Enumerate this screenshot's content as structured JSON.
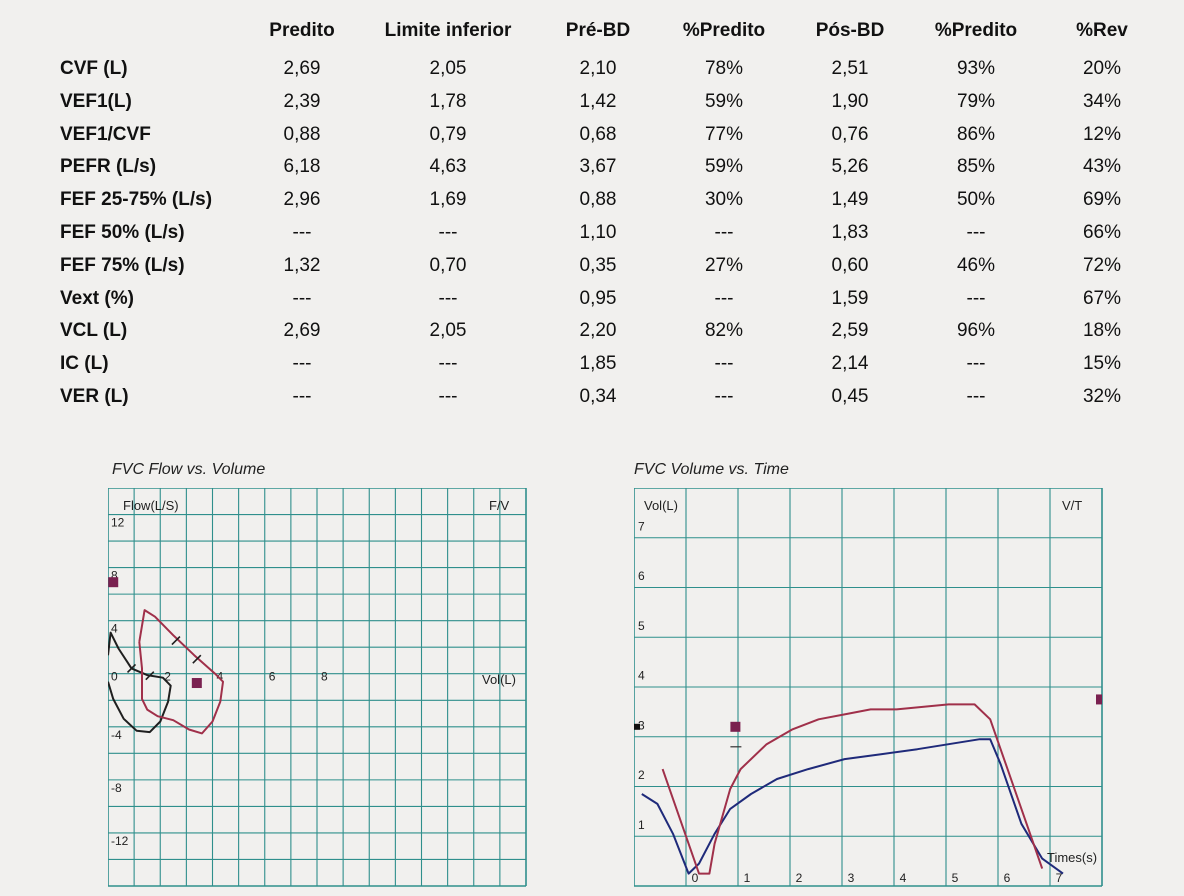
{
  "table": {
    "headers": [
      "Predito",
      "Limite inferior",
      "Pré-BD",
      "%Predito",
      "Pós-BD",
      "%Predito",
      "%Rev"
    ],
    "rows": [
      {
        "label": "CVF (L)",
        "values": [
          "2,69",
          "2,05",
          "2,10",
          "78%",
          "2,51",
          "93%",
          "20%"
        ]
      },
      {
        "label": "VEF1(L)",
        "values": [
          "2,39",
          "1,78",
          "1,42",
          "59%",
          "1,90",
          "79%",
          "34%"
        ]
      },
      {
        "label": "VEF1/CVF",
        "values": [
          "0,88",
          "0,79",
          "0,68",
          "77%",
          "0,76",
          "86%",
          "12%"
        ]
      },
      {
        "label": "PEFR (L/s)",
        "values": [
          "6,18",
          "4,63",
          "3,67",
          "59%",
          "5,26",
          "85%",
          "43%"
        ]
      },
      {
        "label": "FEF 25-75% (L/s)",
        "values": [
          "2,96",
          "1,69",
          "0,88",
          "30%",
          "1,49",
          "50%",
          "69%"
        ]
      },
      {
        "label": "FEF 50% (L/s)",
        "values": [
          "---",
          "---",
          "1,10",
          "---",
          "1,83",
          "---",
          "66%"
        ]
      },
      {
        "label": "FEF 75% (L/s)",
        "values": [
          "1,32",
          "0,70",
          "0,35",
          "27%",
          "0,60",
          "46%",
          "72%"
        ]
      },
      {
        "label": "Vext (%)",
        "values": [
          "---",
          "---",
          "0,95",
          "---",
          "1,59",
          "---",
          "67%"
        ]
      },
      {
        "label": "VCL (L)",
        "values": [
          "2,69",
          "2,05",
          "2,20",
          "82%",
          "2,59",
          "96%",
          "18%"
        ]
      },
      {
        "label": "IC (L)",
        "values": [
          "---",
          "---",
          "1,85",
          "---",
          "2,14",
          "---",
          "15%"
        ]
      },
      {
        "label": "VER (L)",
        "values": [
          "---",
          "---",
          "0,34",
          "---",
          "0,45",
          "---",
          "32%"
        ]
      }
    ]
  },
  "charts": {
    "flow_volume": {
      "title": "FVC Flow  vs. Volume",
      "ylabel": "Flow(L/S)",
      "corner": "F/V",
      "xlabel": "Vol(L)",
      "y_ticks": [
        "12",
        "8",
        "4",
        "-4",
        "-8",
        "-12"
      ],
      "x_ticks": [
        "0",
        "2",
        "4",
        "6",
        "8"
      ]
    },
    "volume_time": {
      "title": "FVC Volume  vs. Time",
      "ylabel": "Vol(L)",
      "corner": "V/T",
      "xlabel": "Times(s)",
      "y_ticks": [
        "7",
        "6",
        "5",
        "4",
        "3",
        "2",
        "1"
      ],
      "x_ticks": [
        "0",
        "1",
        "2",
        "3",
        "4",
        "5",
        "6",
        "7"
      ]
    }
  },
  "colors": {
    "grid": "#2f8f8c",
    "pre_curve": "#1f1f1f",
    "post_curve": "#a0304a",
    "vt_pre_curve": "#1f2a7a",
    "marker": "#7a2150"
  },
  "chart_data": [
    {
      "type": "line",
      "title": "FVC Flow  vs. Volume",
      "xlabel": "Vol(L)",
      "ylabel": "Flow(L/S)",
      "xlim": [
        0,
        15
      ],
      "ylim": [
        -15,
        15
      ],
      "grid": true,
      "series": [
        {
          "x": [
            0.0,
            0.1,
            0.4,
            0.9,
            1.5,
            2.1,
            2.4,
            2.3,
            2.0,
            1.6,
            1.1,
            0.6,
            0.2,
            0.0
          ],
          "y": [
            2.0,
            3.7,
            2.5,
            1.0,
            0.5,
            0.3,
            -0.3,
            -1.5,
            -3.0,
            -3.8,
            -3.7,
            -2.8,
            -1.3,
            0.0
          ]
        },
        {
          "x": [
            1.2,
            1.4,
            1.8,
            2.5,
            3.3,
            4.1,
            4.4,
            4.3,
            4.0,
            3.6,
            3.1,
            2.5,
            1.9,
            1.5,
            1.3,
            1.3,
            1.2
          ],
          "y": [
            3.0,
            5.4,
            4.9,
            3.5,
            2.0,
            0.6,
            0.0,
            -1.5,
            -3.0,
            -3.9,
            -3.6,
            -2.9,
            -2.6,
            -2.1,
            -1.3,
            1.0,
            3.0
          ]
        },
        {
          "x": [
            0.2,
            3.4
          ],
          "y": [
            7.5,
            -0.1
          ]
        }
      ]
    },
    {
      "type": "line",
      "title": "FVC Volume  vs. Time",
      "xlabel": "Times(s)",
      "ylabel": "Vol(L)",
      "xlim": [
        -1,
        7.5
      ],
      "ylim": [
        -0.2,
        7.5
      ],
      "grid": true,
      "series": [
        {
          "x": [
            -0.9,
            -0.6,
            -0.3,
            0.0,
            0.2,
            0.5,
            0.8,
            1.2,
            1.7,
            2.3,
            3.0,
            3.7,
            4.4,
            5.0,
            5.6,
            5.8,
            6.0,
            6.4,
            6.8,
            7.2
          ],
          "y": [
            1.6,
            1.4,
            0.8,
            0.0,
            0.2,
            0.8,
            1.3,
            1.6,
            1.9,
            2.1,
            2.3,
            2.4,
            2.5,
            2.6,
            2.7,
            2.7,
            2.2,
            1.0,
            0.3,
            0.0
          ]
        },
        {
          "x": [
            -0.5,
            -0.3,
            0.0,
            0.2,
            0.4,
            0.5,
            0.8,
            1.0,
            1.5,
            2.0,
            2.5,
            3.0,
            3.5,
            4.0,
            4.5,
            5.0,
            5.5,
            5.8,
            6.1,
            6.5,
            6.8
          ],
          "y": [
            2.1,
            1.5,
            0.6,
            0.0,
            0.0,
            0.6,
            1.7,
            2.1,
            2.6,
            2.9,
            3.1,
            3.2,
            3.3,
            3.3,
            3.35,
            3.4,
            3.4,
            3.1,
            2.2,
            1.0,
            0.1
          ]
        },
        {
          "x": [
            0.9
          ],
          "y": [
            2.95
          ]
        }
      ]
    }
  ]
}
